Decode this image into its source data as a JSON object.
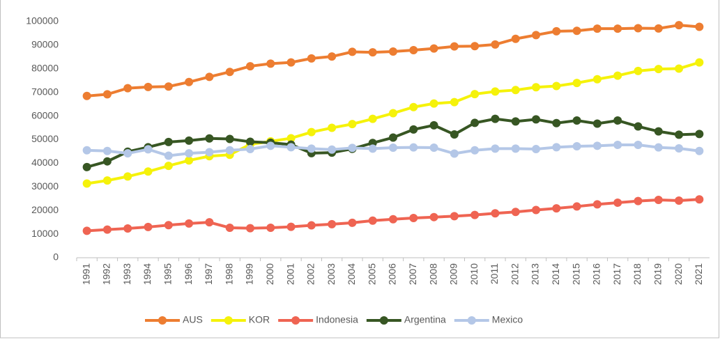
{
  "chart_data": {
    "type": "line",
    "categories": [
      "1991",
      "1992",
      "1993",
      "1994",
      "1995",
      "1996",
      "1997",
      "1998",
      "1999",
      "2000",
      "2001",
      "2002",
      "2003",
      "2004",
      "2005",
      "2006",
      "2007",
      "2008",
      "2009",
      "2010",
      "2011",
      "2012",
      "2013",
      "2014",
      "2015",
      "2016",
      "2017",
      "2018",
      "2019",
      "2020",
      "2021"
    ],
    "series": [
      {
        "name": "AUS",
        "color": "#ed7d31",
        "values": [
          68500,
          69200,
          71800,
          72300,
          72500,
          74400,
          76600,
          78700,
          81100,
          82200,
          82700,
          84400,
          85200,
          87200,
          87000,
          87300,
          87900,
          88600,
          89500,
          89600,
          90300,
          92700,
          94300,
          95900,
          96100,
          97000,
          97000,
          97200,
          97100,
          98500,
          97800
        ]
      },
      {
        "name": "KOR",
        "color": "#f5f20a",
        "values": [
          31400,
          32700,
          34400,
          36500,
          38900,
          41200,
          43000,
          43600,
          48000,
          49300,
          50600,
          53200,
          55000,
          56600,
          58800,
          61200,
          63800,
          65300,
          65900,
          69300,
          70400,
          71000,
          72200,
          72700,
          74000,
          75600,
          77100,
          79100,
          79900,
          80100,
          82700
        ]
      },
      {
        "name": "Indonesia",
        "color": "#ef6452",
        "values": [
          11400,
          11900,
          12400,
          13000,
          13800,
          14500,
          15000,
          12700,
          12500,
          12700,
          13100,
          13700,
          14200,
          14800,
          15700,
          16300,
          16800,
          17200,
          17600,
          18100,
          18800,
          19400,
          20200,
          20900,
          21700,
          22600,
          23300,
          24000,
          24500,
          24200,
          24700
        ]
      },
      {
        "name": "Argentina",
        "color": "#375623",
        "values": [
          38400,
          40800,
          44900,
          46800,
          49000,
          49600,
          50500,
          50300,
          49100,
          48700,
          47900,
          44300,
          44500,
          46100,
          48600,
          50900,
          54300,
          56100,
          52200,
          57100,
          58800,
          57700,
          58600,
          57000,
          58100,
          56800,
          58100,
          55600,
          53500,
          52100,
          52400
        ]
      },
      {
        "name": "Mexico",
        "color": "#b4c7e7",
        "values": [
          45500,
          45200,
          44200,
          45900,
          43200,
          44200,
          44700,
          45500,
          46000,
          47400,
          46800,
          46200,
          45800,
          46500,
          46200,
          46600,
          46700,
          46600,
          44100,
          45500,
          46200,
          46200,
          46000,
          46800,
          47200,
          47400,
          47800,
          47800,
          46700,
          46300,
          45200
        ]
      }
    ],
    "ylim": [
      0,
      100000
    ],
    "yticks": [
      0,
      10000,
      20000,
      30000,
      40000,
      50000,
      60000,
      70000,
      80000,
      90000,
      100000
    ],
    "legend": "bottom"
  }
}
